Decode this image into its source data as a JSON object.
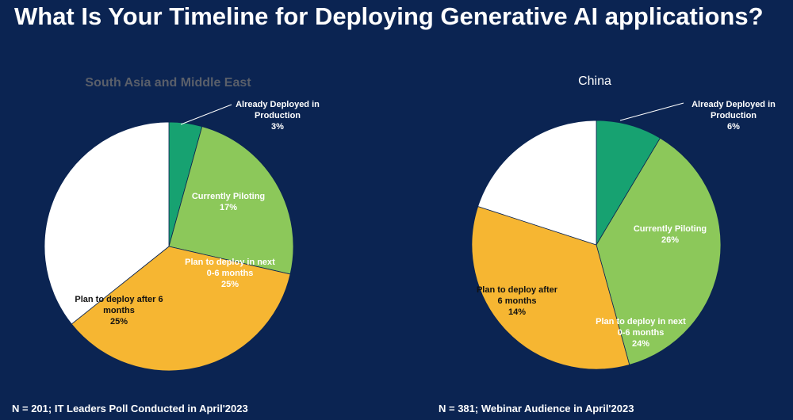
{
  "title": "What Is Your Timeline for Deploying Generative AI applications?",
  "chart_data": [
    {
      "type": "pie",
      "title": "South Asia and Middle East",
      "categories": [
        "Already Deployed in Production",
        "Currently Piloting",
        "Plan to deploy in next 0-6 months",
        "Plan to deploy after 6 months"
      ],
      "values": [
        3,
        17,
        25,
        25
      ],
      "value_labels": [
        "3%",
        "17%",
        "25%",
        "25%"
      ],
      "colors": [
        "#17a271",
        "#8cc85a",
        "#f6b632",
        "#ffffff"
      ],
      "footnote": "N = 201; IT Leaders Poll Conducted in April'2023"
    },
    {
      "type": "pie",
      "title": "China",
      "categories": [
        "Already Deployed in Production",
        "Currently Piloting",
        "Plan to deploy in next 0-6 months",
        "Plan to deploy after 6 months"
      ],
      "values": [
        6,
        26,
        24,
        14
      ],
      "value_labels": [
        "6%",
        "26%",
        "24%",
        "14%"
      ],
      "colors": [
        "#17a271",
        "#8cc85a",
        "#f6b632",
        "#ffffff"
      ],
      "footnote": "N = 381; Webinar Audience in April'2023"
    }
  ]
}
